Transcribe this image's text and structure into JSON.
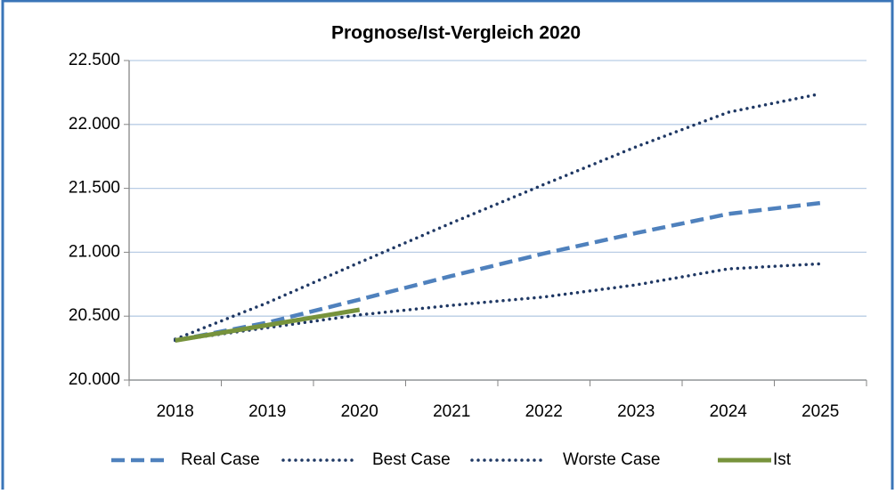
{
  "chart_data": {
    "type": "line",
    "title": "Prognose/Ist-Vergleich 2020",
    "categories": [
      "2018",
      "2019",
      "2020",
      "2021",
      "2022",
      "2023",
      "2024",
      "2025"
    ],
    "series": [
      {
        "name": "Real Case",
        "color": "#4f81bd",
        "style": "dashed",
        "values": [
          20310,
          20450,
          20630,
          20815,
          20990,
          21150,
          21300,
          21385
        ]
      },
      {
        "name": "Best Case",
        "color": "#1f3864",
        "style": "dotted",
        "values": [
          20320,
          20605,
          20920,
          21230,
          21530,
          21825,
          22095,
          22240
        ]
      },
      {
        "name": "Worste Case",
        "color": "#1f3864",
        "style": "dotted",
        "values": [
          20310,
          20410,
          20510,
          20585,
          20650,
          20745,
          20870,
          20910
        ]
      },
      {
        "name": "Ist",
        "color": "#77933c",
        "style": "solid",
        "values": [
          20310,
          20430,
          20550,
          null,
          null,
          null,
          null,
          null
        ]
      }
    ],
    "ylim": [
      20000,
      22500
    ],
    "yticks": [
      {
        "value": 20000,
        "label": "20.000"
      },
      {
        "value": 20500,
        "label": "20.500"
      },
      {
        "value": 21000,
        "label": "21.000"
      },
      {
        "value": 21500,
        "label": "21.500"
      },
      {
        "value": 22000,
        "label": "22.000"
      },
      {
        "value": 22500,
        "label": "22.500"
      }
    ],
    "grid": true,
    "legend": "bottom"
  }
}
